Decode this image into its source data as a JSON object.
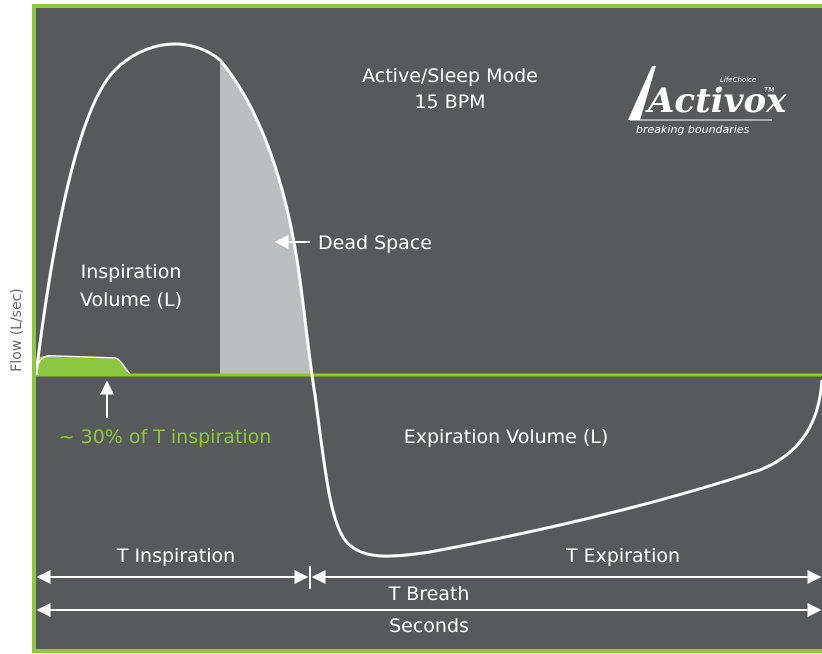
{
  "axis": {
    "y_label": "Flow (L/sec)"
  },
  "mode": {
    "line1": "Active/Sleep Mode",
    "line2": "15 BPM"
  },
  "logo": {
    "brand": "Activox",
    "sub_brand": "LifeChoice",
    "trademark": "TM",
    "tagline": "breaking boundaries"
  },
  "labels": {
    "inspiration_volume_line1": "Inspiration",
    "inspiration_volume_line2": "Volume (L)",
    "dead_space": "Dead Space",
    "expiration_volume": "Expiration Volume (L)",
    "pulse_note": "~ 30% of T inspiration"
  },
  "timing": {
    "t_inspiration": "T Inspiration",
    "t_expiration": "T Expiration",
    "t_breath": "T Breath",
    "seconds": "Seconds"
  },
  "colors": {
    "background": "#58595b",
    "frame": "#8dc63f",
    "curve": "#ffffff",
    "dead_space_fill": "#bcbec0",
    "pulse_fill": "#8dc63f",
    "note_text": "#8dc63f"
  }
}
